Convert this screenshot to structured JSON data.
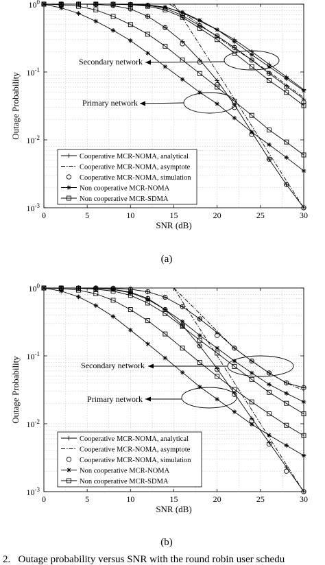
{
  "caption": "2.   Outage probability versus SNR with the round robin user schedu",
  "chart_data": [
    {
      "type": "line",
      "sublabel": "(a)",
      "xlabel": "SNR (dB)",
      "ylabel": "Outage Probability",
      "xlim": [
        0,
        30
      ],
      "ylim": [
        0.001,
        1
      ],
      "yscale": "log",
      "grid": true,
      "xticks": [
        "0",
        "5",
        "10",
        "15",
        "20",
        "25",
        "30"
      ],
      "yticks": [
        "10^0",
        "10^-1",
        "10^-2",
        "10^-3"
      ],
      "legend_position": "lower-left",
      "legend": [
        "Cooperative MCR-NOMA, analytical",
        "Cooperative MCR-NOMA, asymptote",
        "Cooperative MCR-NOMA, simulation",
        "Non cooperative MCR-NOMA",
        "Non cooperative MCR-SDMA"
      ],
      "annotations": [
        {
          "text": "Secondary network",
          "x": 22.5,
          "y": 0.14
        },
        {
          "text": "Primary network",
          "x": 20,
          "y": 0.038
        }
      ],
      "series": [
        {
          "name": "Cooperative MCR-NOMA, analytical",
          "group": "secondary",
          "marker": "plus",
          "style": "solid",
          "x": [
            0,
            2,
            4,
            6,
            8,
            10,
            12,
            14,
            16,
            18,
            20,
            22,
            24,
            26,
            28,
            30
          ],
          "y": [
            1,
            1,
            1,
            1,
            0.998,
            0.99,
            0.97,
            0.9,
            0.75,
            0.56,
            0.42,
            0.3,
            0.2,
            0.13,
            0.085,
            0.055
          ]
        },
        {
          "name": "Cooperative MCR-NOMA, analytical",
          "group": "secondary",
          "marker": "plus",
          "style": "solid",
          "x": [
            0,
            2,
            4,
            6,
            8,
            10,
            12,
            14,
            16,
            18,
            20,
            22,
            24,
            26,
            28,
            30
          ],
          "y": [
            1,
            1,
            1,
            1,
            0.998,
            0.99,
            0.96,
            0.87,
            0.68,
            0.48,
            0.34,
            0.23,
            0.15,
            0.095,
            0.062,
            0.04
          ]
        },
        {
          "name": "Cooperative MCR-NOMA, asymptote",
          "group": "secondary",
          "marker": "none",
          "style": "dashdot",
          "x": [
            14.5,
            16,
            18,
            20,
            22,
            24,
            26,
            28,
            30
          ],
          "y": [
            1,
            0.75,
            0.5,
            0.33,
            0.22,
            0.15,
            0.1,
            0.065,
            0.042
          ]
        },
        {
          "name": "Cooperative MCR-NOMA, simulation",
          "group": "secondary",
          "marker": "circle",
          "style": "none",
          "x": [
            0,
            2,
            4,
            6,
            8,
            10,
            12,
            14,
            16,
            18,
            20,
            22,
            24,
            26,
            28,
            30
          ],
          "y": [
            1,
            1,
            1,
            1,
            0.998,
            0.99,
            0.96,
            0.87,
            0.68,
            0.48,
            0.34,
            0.23,
            0.15,
            0.095,
            0.06,
            0.036
          ]
        },
        {
          "name": "Non cooperative MCR-NOMA",
          "group": "secondary",
          "marker": "star",
          "style": "solid",
          "x": [
            0,
            2,
            4,
            6,
            8,
            10,
            12,
            14,
            16,
            18,
            20,
            22,
            24,
            26,
            28,
            30
          ],
          "y": [
            1,
            1,
            1,
            1,
            0.998,
            0.99,
            0.97,
            0.9,
            0.76,
            0.58,
            0.42,
            0.28,
            0.18,
            0.12,
            0.08,
            0.053
          ]
        },
        {
          "name": "Non cooperative MCR-SDMA",
          "group": "secondary",
          "marker": "square",
          "style": "solid",
          "x": [
            0,
            2,
            4,
            6,
            8,
            10,
            12,
            14,
            16,
            18,
            20,
            22,
            24,
            26,
            28,
            30
          ],
          "y": [
            1,
            1,
            1,
            1,
            0.996,
            0.98,
            0.93,
            0.82,
            0.64,
            0.44,
            0.3,
            0.19,
            0.12,
            0.075,
            0.05,
            0.032
          ]
        },
        {
          "name": "Cooperative MCR-NOMA, analytical",
          "group": "primary",
          "marker": "plus",
          "style": "solid",
          "x": [
            0,
            2,
            4,
            6,
            8,
            10,
            12,
            14,
            16,
            18,
            20,
            22,
            24,
            26,
            28,
            30
          ],
          "y": [
            1,
            1,
            1,
            0.99,
            0.95,
            0.85,
            0.66,
            0.45,
            0.28,
            0.15,
            0.075,
            0.033,
            0.013,
            0.0052,
            0.0022,
            0.001
          ]
        },
        {
          "name": "Cooperative MCR-NOMA, asymptote",
          "group": "primary",
          "marker": "none",
          "style": "dashdot",
          "x": [
            15,
            16,
            18,
            20,
            22,
            24,
            26,
            28,
            30
          ],
          "y": [
            1,
            0.63,
            0.25,
            0.1,
            0.04,
            0.016,
            0.0063,
            0.0025,
            0.001
          ]
        },
        {
          "name": "Cooperative MCR-NOMA, simulation",
          "group": "primary",
          "marker": "circle",
          "style": "none",
          "x": [
            0,
            2,
            4,
            6,
            8,
            10,
            12,
            14,
            16,
            18,
            20,
            22,
            24,
            26,
            28,
            30
          ],
          "y": [
            1,
            1,
            1,
            0.99,
            0.95,
            0.85,
            0.66,
            0.45,
            0.26,
            0.14,
            0.065,
            0.03,
            0.012,
            0.0052,
            0.0022,
            0.001
          ]
        },
        {
          "name": "Non cooperative MCR-NOMA",
          "group": "primary",
          "marker": "star",
          "style": "solid",
          "x": [
            0,
            2,
            4,
            6,
            8,
            10,
            12,
            14,
            16,
            18,
            20,
            22,
            24,
            26,
            28,
            30
          ],
          "y": [
            1,
            0.88,
            0.73,
            0.56,
            0.41,
            0.29,
            0.19,
            0.12,
            0.078,
            0.05,
            0.034,
            0.021,
            0.013,
            0.0085,
            0.0055,
            0.0035
          ]
        },
        {
          "name": "Non cooperative MCR-SDMA",
          "group": "primary",
          "marker": "square",
          "style": "solid",
          "x": [
            0,
            2,
            4,
            6,
            8,
            10,
            12,
            14,
            16,
            18,
            20,
            22,
            24,
            26,
            28,
            30
          ],
          "y": [
            1,
            0.98,
            0.93,
            0.82,
            0.66,
            0.5,
            0.36,
            0.24,
            0.15,
            0.095,
            0.06,
            0.037,
            0.023,
            0.014,
            0.0093,
            0.006
          ]
        }
      ]
    },
    {
      "type": "line",
      "sublabel": "(b)",
      "xlabel": "SNR (dB)",
      "ylabel": "Outage Probability",
      "xlim": [
        0,
        30
      ],
      "ylim": [
        0.001,
        1
      ],
      "yscale": "log",
      "grid": true,
      "xticks": [
        "0",
        "5",
        "10",
        "15",
        "20",
        "25",
        "30"
      ],
      "yticks": [
        "10^0",
        "10^-1",
        "10^-2",
        "10^-3"
      ],
      "legend_position": "lower-left",
      "legend": [
        "Cooperative MCR-NOMA, analytical",
        "Cooperative MCR-NOMA, asymptote",
        "Cooperative MCR-NOMA, simulation",
        "Non cooperative MCR-NOMA",
        "Non cooperative MCR-SDMA"
      ],
      "annotations": [
        {
          "text": "Secondary network",
          "x": 24,
          "y": 0.07
        },
        {
          "text": "Primary network",
          "x": 20,
          "y": 0.026
        }
      ],
      "series": [
        {
          "name": "Cooperative MCR-NOMA, analytical",
          "group": "secondary",
          "marker": "plus",
          "style": "solid",
          "x": [
            0,
            2,
            4,
            6,
            8,
            10,
            12,
            14,
            16,
            18,
            20,
            22,
            24,
            26,
            28,
            30
          ],
          "y": [
            1,
            1,
            1,
            1,
            0.99,
            0.96,
            0.88,
            0.73,
            0.53,
            0.35,
            0.22,
            0.13,
            0.084,
            0.056,
            0.04,
            0.034
          ]
        },
        {
          "name": "Cooperative MCR-NOMA, asymptote",
          "group": "secondary",
          "marker": "none",
          "style": "dashdot",
          "x": [
            15,
            16,
            18,
            20,
            22,
            24,
            26,
            28,
            30
          ],
          "y": [
            1,
            0.75,
            0.42,
            0.23,
            0.13,
            0.084,
            0.056,
            0.04,
            0.031
          ]
        },
        {
          "name": "Cooperative MCR-NOMA, simulation",
          "group": "secondary",
          "marker": "circle",
          "style": "none",
          "x": [
            0,
            2,
            4,
            6,
            8,
            10,
            12,
            14,
            16,
            18,
            20,
            22,
            24,
            26,
            28,
            30
          ],
          "y": [
            1,
            1,
            1,
            1,
            0.99,
            0.96,
            0.88,
            0.73,
            0.53,
            0.35,
            0.2,
            0.13,
            0.084,
            0.056,
            0.04,
            0.034
          ]
        },
        {
          "name": "Non cooperative MCR-NOMA",
          "group": "secondary",
          "marker": "star",
          "style": "solid",
          "x": [
            0,
            2,
            4,
            6,
            8,
            10,
            12,
            14,
            16,
            18,
            20,
            22,
            24,
            26,
            28,
            30
          ],
          "y": [
            1,
            1,
            1,
            0.99,
            0.95,
            0.85,
            0.68,
            0.48,
            0.32,
            0.2,
            0.13,
            0.084,
            0.056,
            0.038,
            0.028,
            0.021
          ]
        },
        {
          "name": "Non cooperative MCR-SDMA",
          "group": "secondary",
          "marker": "square",
          "style": "solid",
          "x": [
            0,
            2,
            4,
            6,
            8,
            10,
            12,
            14,
            16,
            18,
            20,
            22,
            24,
            26,
            28,
            30
          ],
          "y": [
            1,
            1,
            0.99,
            0.96,
            0.9,
            0.78,
            0.6,
            0.42,
            0.27,
            0.17,
            0.11,
            0.07,
            0.045,
            0.029,
            0.02,
            0.014
          ]
        },
        {
          "name": "Cooperative MCR-NOMA, analytical",
          "group": "primary",
          "marker": "plus",
          "style": "solid",
          "x": [
            0,
            2,
            4,
            6,
            8,
            10,
            12,
            14,
            16,
            18,
            20,
            22,
            24,
            26,
            28,
            30
          ],
          "y": [
            1,
            1,
            1,
            0.99,
            0.96,
            0.87,
            0.7,
            0.48,
            0.28,
            0.14,
            0.065,
            0.028,
            0.012,
            0.0053,
            0.0023,
            0.001
          ]
        },
        {
          "name": "Cooperative MCR-NOMA, asymptote",
          "group": "primary",
          "marker": "none",
          "style": "dashdot",
          "x": [
            15,
            16,
            18,
            20,
            22,
            24,
            26,
            28,
            30
          ],
          "y": [
            1,
            0.63,
            0.25,
            0.1,
            0.04,
            0.016,
            0.0063,
            0.0025,
            0.001
          ]
        },
        {
          "name": "Cooperative MCR-NOMA, simulation",
          "group": "primary",
          "marker": "circle",
          "style": "none",
          "x": [
            0,
            2,
            4,
            6,
            8,
            10,
            12,
            14,
            16,
            18,
            20,
            22,
            24,
            26,
            28,
            30
          ],
          "y": [
            1,
            1,
            1,
            0.99,
            0.96,
            0.87,
            0.7,
            0.48,
            0.28,
            0.14,
            0.063,
            0.027,
            0.011,
            0.005,
            0.002,
            0.001
          ]
        },
        {
          "name": "Non cooperative MCR-NOMA",
          "group": "primary",
          "marker": "star",
          "style": "solid",
          "x": [
            0,
            2,
            4,
            6,
            8,
            10,
            12,
            14,
            16,
            18,
            20,
            22,
            24,
            26,
            28,
            30
          ],
          "y": [
            1,
            0.9,
            0.74,
            0.55,
            0.38,
            0.24,
            0.15,
            0.093,
            0.057,
            0.035,
            0.023,
            0.015,
            0.0098,
            0.0068,
            0.0048,
            0.0034
          ]
        },
        {
          "name": "Non cooperative MCR-SDMA",
          "group": "primary",
          "marker": "square",
          "style": "solid",
          "x": [
            0,
            2,
            4,
            6,
            8,
            10,
            12,
            14,
            16,
            18,
            20,
            22,
            24,
            26,
            28,
            30
          ],
          "y": [
            1,
            0.98,
            0.93,
            0.82,
            0.66,
            0.48,
            0.33,
            0.21,
            0.13,
            0.08,
            0.05,
            0.032,
            0.021,
            0.014,
            0.0095,
            0.0067
          ]
        }
      ]
    }
  ]
}
